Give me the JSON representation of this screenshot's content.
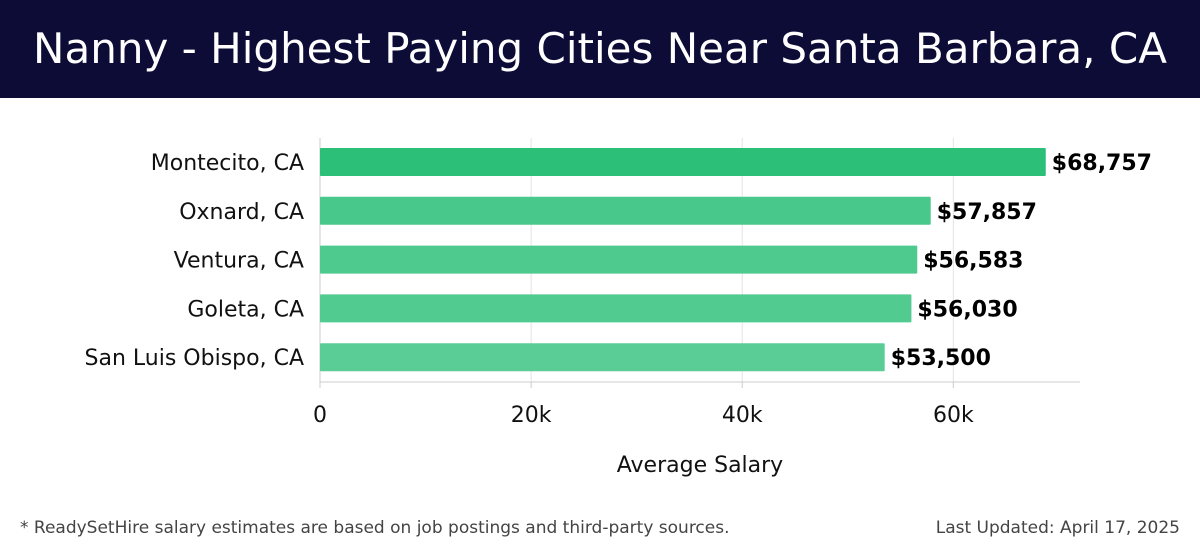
{
  "header": {
    "title": "Nanny - Highest Paying Cities Near Santa Barbara, CA"
  },
  "chart_data": {
    "type": "bar",
    "orientation": "horizontal",
    "categories": [
      "Montecito, CA",
      "Oxnard, CA",
      "Ventura, CA",
      "Goleta, CA",
      "San Luis Obispo, CA"
    ],
    "values": [
      68757,
      57857,
      56583,
      56030,
      53500
    ],
    "value_labels": [
      "$68,757",
      "$57,857",
      "$56,583",
      "$56,030",
      "$53,500"
    ],
    "xlabel": "Average Salary",
    "ylabel": "",
    "xlim": [
      0,
      72000
    ],
    "x_ticks": [
      0,
      20000,
      40000,
      60000
    ],
    "x_tick_labels": [
      "0",
      "20k",
      "40k",
      "60k"
    ],
    "grid": true,
    "bar_colors": [
      "#2bbf78",
      "#48c88b",
      "#4fca8f",
      "#52cb91",
      "#5acd96"
    ]
  },
  "footer": {
    "note": "* ReadySetHire salary estimates are based on job postings and third-party sources.",
    "updated": "Last Updated: April 17, 2025"
  }
}
